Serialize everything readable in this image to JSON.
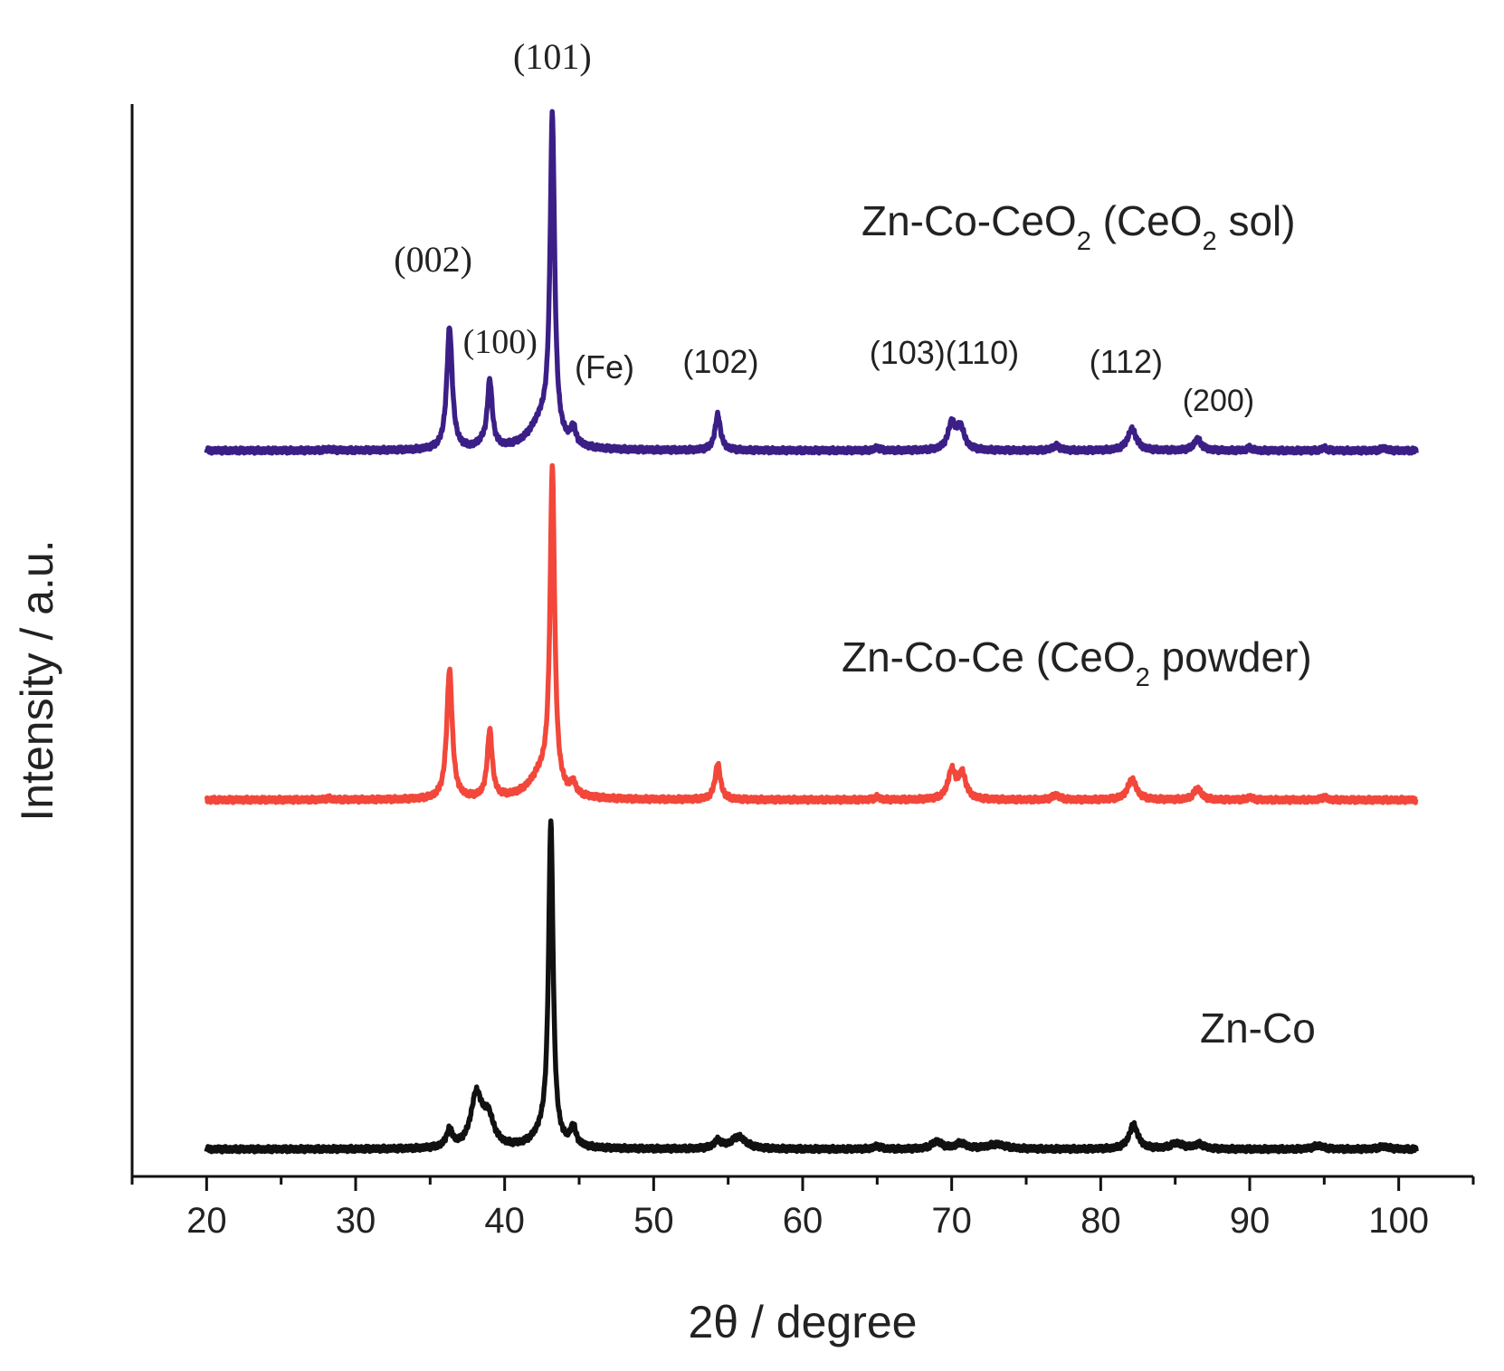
{
  "chart_data": {
    "type": "line",
    "xlabel": "2θ / degree",
    "ylabel": "Intensity / a.u.",
    "xlim": [
      15,
      105
    ],
    "x_ticks": [
      20,
      30,
      40,
      50,
      60,
      70,
      80,
      90,
      100
    ],
    "y_ticks_shown": false,
    "grid": false,
    "series": [
      {
        "name": "Zn-Co-CeO2 (CeO2 sol)",
        "label_main": "Zn-Co-CeO",
        "label_sub1": "2",
        "label_mid": " (CeO",
        "label_sub2": "2",
        "label_end": " sol)",
        "color": "#3b1f86",
        "baseline": 0,
        "peaks": [
          {
            "x": 28.2,
            "h": 0.15,
            "w": 0.25
          },
          {
            "x": 36.3,
            "h": 13.0,
            "w": 0.22
          },
          {
            "x": 38.4,
            "h": 0.4,
            "w": 0.3
          },
          {
            "x": 39.0,
            "h": 7.2,
            "w": 0.2
          },
          {
            "x": 43.2,
            "h": 34.0,
            "w": 0.18
          },
          {
            "x": 42.5,
            "h": 3.0,
            "w": 1.0
          },
          {
            "x": 44.6,
            "h": 1.8,
            "w": 0.2
          },
          {
            "x": 54.3,
            "h": 3.8,
            "w": 0.22
          },
          {
            "x": 65.0,
            "h": 0.3,
            "w": 0.2
          },
          {
            "x": 70.0,
            "h": 2.8,
            "w": 0.3
          },
          {
            "x": 70.6,
            "h": 2.3,
            "w": 0.3
          },
          {
            "x": 77.0,
            "h": 0.5,
            "w": 0.3
          },
          {
            "x": 82.1,
            "h": 2.3,
            "w": 0.35
          },
          {
            "x": 86.5,
            "h": 1.2,
            "w": 0.3
          },
          {
            "x": 90.0,
            "h": 0.3,
            "w": 0.2
          },
          {
            "x": 95.0,
            "h": 0.3,
            "w": 0.2
          },
          {
            "x": 99.0,
            "h": 0.3,
            "w": 0.2
          }
        ]
      },
      {
        "name": "Zn-Co-Ce (CeO2 powder)",
        "label_main": "Zn-Co-Ce (CeO",
        "label_sub1": "2",
        "label_end": " powder)",
        "color": "#f2473a",
        "baseline": 0,
        "peaks": [
          {
            "x": 28.2,
            "h": 0.15,
            "w": 0.25
          },
          {
            "x": 36.3,
            "h": 13.8,
            "w": 0.22
          },
          {
            "x": 39.0,
            "h": 7.2,
            "w": 0.2
          },
          {
            "x": 43.2,
            "h": 34.0,
            "w": 0.18
          },
          {
            "x": 42.5,
            "h": 2.6,
            "w": 1.0
          },
          {
            "x": 44.6,
            "h": 1.2,
            "w": 0.2
          },
          {
            "x": 54.3,
            "h": 3.8,
            "w": 0.22
          },
          {
            "x": 65.0,
            "h": 0.3,
            "w": 0.2
          },
          {
            "x": 70.0,
            "h": 3.0,
            "w": 0.3
          },
          {
            "x": 70.7,
            "h": 2.7,
            "w": 0.3
          },
          {
            "x": 77.0,
            "h": 0.5,
            "w": 0.3
          },
          {
            "x": 82.1,
            "h": 2.2,
            "w": 0.35
          },
          {
            "x": 86.5,
            "h": 1.2,
            "w": 0.3
          },
          {
            "x": 90.0,
            "h": 0.3,
            "w": 0.2
          },
          {
            "x": 95.0,
            "h": 0.3,
            "w": 0.2
          }
        ]
      },
      {
        "name": "Zn-Co",
        "label_main": "Zn-Co",
        "color": "#111111",
        "baseline": 0,
        "peaks": [
          {
            "x": 36.3,
            "h": 1.8,
            "w": 0.25
          },
          {
            "x": 38.1,
            "h": 5.5,
            "w": 0.45
          },
          {
            "x": 38.9,
            "h": 3.0,
            "w": 0.45
          },
          {
            "x": 43.1,
            "h": 34.0,
            "w": 0.18
          },
          {
            "x": 42.6,
            "h": 1.5,
            "w": 0.8
          },
          {
            "x": 44.6,
            "h": 2.0,
            "w": 0.22
          },
          {
            "x": 54.3,
            "h": 0.8,
            "w": 0.3
          },
          {
            "x": 55.7,
            "h": 1.3,
            "w": 0.6
          },
          {
            "x": 65.0,
            "h": 0.3,
            "w": 0.3
          },
          {
            "x": 69.0,
            "h": 0.8,
            "w": 0.4
          },
          {
            "x": 70.6,
            "h": 0.6,
            "w": 0.4
          },
          {
            "x": 73.0,
            "h": 0.5,
            "w": 0.8
          },
          {
            "x": 82.2,
            "h": 2.6,
            "w": 0.35
          },
          {
            "x": 85.1,
            "h": 0.6,
            "w": 0.5
          },
          {
            "x": 86.6,
            "h": 0.5,
            "w": 0.4
          },
          {
            "x": 94.6,
            "h": 0.4,
            "w": 0.4
          },
          {
            "x": 99.0,
            "h": 0.3,
            "w": 0.4
          }
        ]
      }
    ],
    "annotations": [
      {
        "text": "(101)",
        "x": 43.2,
        "font": "serif"
      },
      {
        "text": "(002)",
        "x": 35.2,
        "font": "serif"
      },
      {
        "text": "(100)",
        "x": 39.7,
        "font": "serif"
      },
      {
        "text": "(Fe)",
        "x": 46.7,
        "font": "sans"
      },
      {
        "text": "(102)",
        "x": 54.5,
        "font": "sans"
      },
      {
        "text": "(103)(110)",
        "x": 69.5,
        "font": "sans"
      },
      {
        "text": "(112)",
        "x": 81.7,
        "font": "sans"
      },
      {
        "text": "(200)",
        "x": 87.9,
        "font": "sans"
      }
    ]
  }
}
